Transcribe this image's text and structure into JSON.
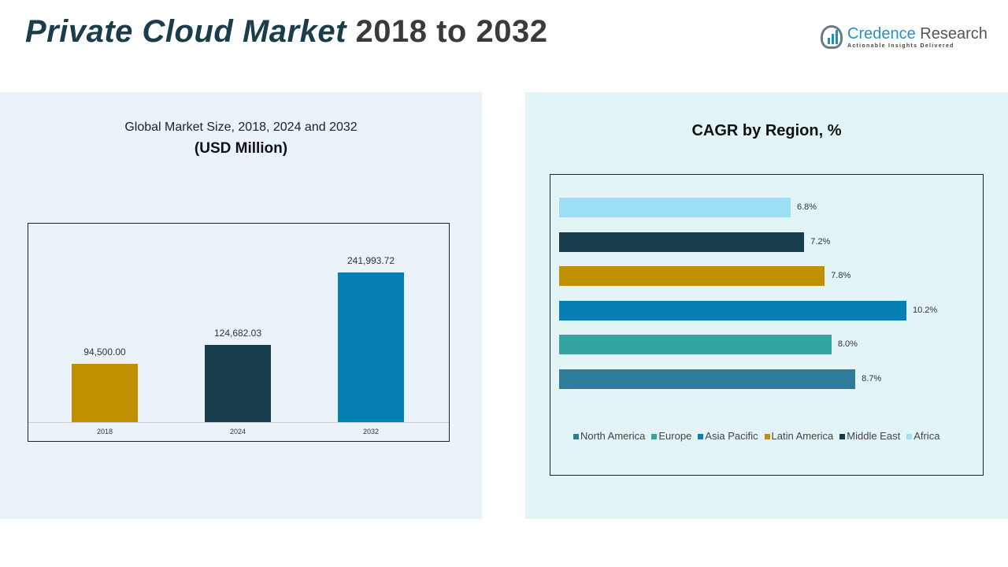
{
  "header": {
    "title_main": "Private Cloud Market",
    "title_years": "2018 to 2032"
  },
  "logo": {
    "name_a": "Credence",
    "name_b": "Research",
    "tagline": "Actionable Insights Delivered"
  },
  "chart_data": [
    {
      "type": "bar",
      "title": "Global Market Size, 2018, 2024 and 2032",
      "subtitle": "(USD Million)",
      "categories": [
        "2018",
        "2024",
        "2032"
      ],
      "values": [
        94500.0,
        124682.03,
        241993.72
      ],
      "labels": [
        "94,500.00",
        "124,682.03",
        "241,993.72"
      ],
      "colors": [
        "#c09000",
        "#173d4c",
        "#0480b4"
      ],
      "ylim": [
        0,
        241993.72
      ]
    },
    {
      "type": "bar",
      "orientation": "horizontal",
      "title": "CAGR by Region, %",
      "categories": [
        "Africa",
        "Middle East",
        "Latin America",
        "Asia Pacific",
        "Europe",
        "North America"
      ],
      "values": [
        6.8,
        7.2,
        7.8,
        10.2,
        8.0,
        8.7
      ],
      "labels": [
        "6.8%",
        "7.2%",
        "7.8%",
        "10.2%",
        "8.0%",
        "8.7%"
      ],
      "colors": [
        "#9ddff5",
        "#173d4c",
        "#c09000",
        "#0480b4",
        "#33a6a4",
        "#2f7b9a"
      ],
      "legend": {
        "placement": "bottom",
        "entries": [
          {
            "name": "North America",
            "color": "#2f7b9a"
          },
          {
            "name": "Europe",
            "color": "#33a6a4"
          },
          {
            "name": "Asia Pacific",
            "color": "#0480b4"
          },
          {
            "name": "Latin America",
            "color": "#c09000"
          },
          {
            "name": "Middle East",
            "color": "#173d4c"
          },
          {
            "name": "Africa",
            "color": "#9ddff5"
          }
        ]
      }
    }
  ]
}
